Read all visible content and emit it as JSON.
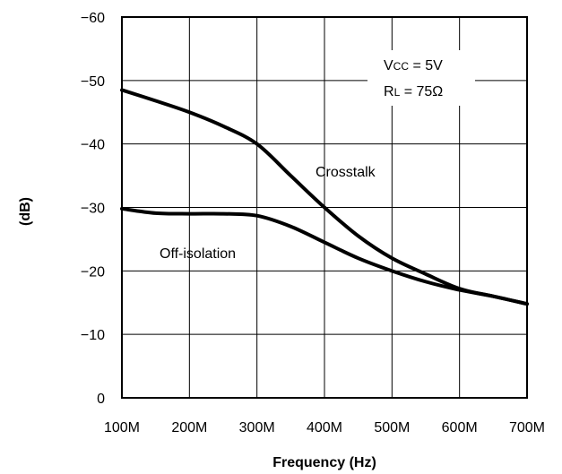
{
  "chart_data": {
    "type": "line",
    "title": "",
    "xlabel": "Frequency (Hz)",
    "ylabel": "(dB)",
    "x": [
      100,
      200,
      300,
      400,
      500,
      600,
      700
    ],
    "xtick_labels": [
      "100M",
      "200M",
      "300M",
      "400M",
      "500M",
      "600M",
      "700M"
    ],
    "ytick_labels": [
      "0",
      "−10",
      "−20",
      "−30",
      "−40",
      "−50",
      "−60"
    ],
    "yticks": [
      0,
      10,
      20,
      30,
      40,
      50,
      60
    ],
    "xlim": [
      100,
      700
    ],
    "ylim": [
      0,
      60
    ],
    "grid": true,
    "series": [
      {
        "name": "Crosstalk",
        "x": [
          100,
          150,
          200,
          250,
          300,
          350,
          400,
          450,
          500,
          550,
          600,
          650,
          700
        ],
        "values": [
          48.5,
          46.8,
          45,
          42.8,
          40,
          35,
          30,
          25.5,
          22,
          19.5,
          17.2,
          16,
          14.8
        ]
      },
      {
        "name": "Off-isolation",
        "x": [
          100,
          150,
          200,
          250,
          300,
          350,
          400,
          450,
          500,
          550,
          600,
          650,
          700
        ],
        "values": [
          29.8,
          29.1,
          29,
          29,
          28.7,
          27,
          24.5,
          22,
          20,
          18.3,
          17,
          16,
          14.8
        ]
      }
    ],
    "annotations": {
      "vcc_main": "V",
      "vcc_sub": "CC",
      "vcc_value": " = 5V",
      "rl_main": "R",
      "rl_sub": "L",
      "rl_value": " = 75Ω"
    }
  }
}
